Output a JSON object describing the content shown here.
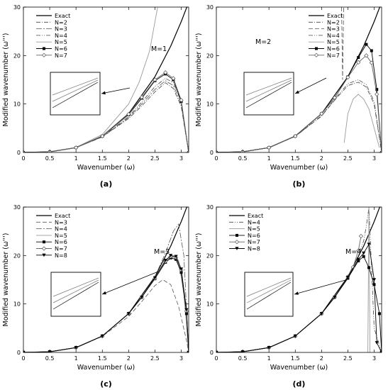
{
  "chart_data": [
    {
      "type": "line",
      "panel_label": "(a)",
      "annotation": "M=1",
      "xlabel": "Wavenumber (ω)",
      "ylabel": "Modified wavenumber (ω''')",
      "xlim": [
        0,
        3.14159
      ],
      "ylim": [
        0,
        30
      ],
      "xticks": [
        0,
        0.5,
        1,
        1.5,
        2,
        2.5,
        3
      ],
      "yticks": [
        0,
        10,
        20,
        30
      ],
      "legend_position": "top-left",
      "series": [
        {
          "name": "Exact",
          "style": "solid-thick",
          "x": [
            0,
            0.5,
            1,
            1.5,
            2,
            2.5,
            2.8,
            3.0,
            3.1416
          ],
          "y": [
            0,
            0.125,
            1,
            3.375,
            8,
            15.625,
            21.95,
            27,
            31.0
          ]
        },
        {
          "name": "N=2",
          "style": "dashdot",
          "x": [
            0,
            0.5,
            1,
            1.5,
            2,
            2.25,
            2.5,
            2.7,
            2.85,
            3.0,
            3.1416
          ],
          "y": [
            0,
            0.12,
            0.99,
            3.2,
            7.0,
            9.6,
            12.5,
            14.4,
            13.2,
            9.5,
            0
          ]
        },
        {
          "name": "N=3",
          "style": "dashdot2",
          "x": [
            0,
            0.5,
            1,
            1.5,
            2,
            2.25,
            2.5,
            2.7,
            2.85,
            3.0,
            3.1416
          ],
          "y": [
            0,
            0.12,
            0.99,
            3.2,
            7.2,
            10.0,
            13.0,
            14.8,
            13.8,
            10.0,
            0
          ]
        },
        {
          "name": "N=4",
          "style": "dashdotdot",
          "x": [
            0,
            0.5,
            1,
            1.5,
            2,
            2.25,
            2.5,
            2.7,
            2.85,
            3.0,
            3.1416
          ],
          "y": [
            0,
            0.12,
            0.99,
            3.25,
            7.4,
            10.4,
            13.6,
            15.3,
            14.4,
            10.5,
            0
          ]
        },
        {
          "name": "N=5",
          "style": "gray",
          "x": [
            0,
            0.5,
            1,
            1.5,
            2,
            2.2,
            2.4,
            2.55
          ],
          "y": [
            0,
            0.13,
            1.05,
            3.7,
            10.0,
            14.5,
            21.0,
            29.9
          ]
        },
        {
          "name": "N=6",
          "style": "filled-square",
          "x": [
            0,
            0.5,
            1,
            1.5,
            2,
            2.25,
            2.5,
            2.7,
            2.85,
            3.0,
            3.1416
          ],
          "y": [
            0,
            0.125,
            1.0,
            3.35,
            7.8,
            11.2,
            14.8,
            16.2,
            15.0,
            10.5,
            0
          ]
        },
        {
          "name": "N=7",
          "style": "open-diamond",
          "x": [
            0,
            0.5,
            1,
            1.5,
            2,
            2.25,
            2.5,
            2.7,
            2.85,
            3.0,
            3.1416
          ],
          "y": [
            0,
            0.125,
            1.0,
            3.37,
            7.9,
            11.4,
            15.0,
            16.5,
            15.3,
            10.8,
            0
          ]
        }
      ]
    },
    {
      "type": "line",
      "panel_label": "(b)",
      "annotation": "M=2",
      "xlabel": "Wavenumber (ω)",
      "ylabel": "Modified wavenumber (ω''')",
      "xlim": [
        0,
        3.14159
      ],
      "ylim": [
        0,
        30
      ],
      "xticks": [
        0,
        0.5,
        1,
        1.5,
        2,
        2.5,
        3
      ],
      "yticks": [
        0,
        10,
        20,
        30
      ],
      "legend_position": "top-right",
      "series": [
        {
          "name": "Exact",
          "style": "solid-thick",
          "x": [
            0,
            0.5,
            1,
            1.5,
            2,
            2.5,
            2.8,
            3.0,
            3.1416
          ],
          "y": [
            0,
            0.125,
            1,
            3.375,
            8,
            15.625,
            21.95,
            27,
            31.0
          ]
        },
        {
          "name": "N=2",
          "style": "dashdot",
          "x": [
            0,
            0.5,
            1,
            1.5,
            2,
            2.25,
            2.5,
            2.7,
            2.85,
            3.0,
            3.1416
          ],
          "y": [
            0,
            0.12,
            0.99,
            3.3,
            7.5,
            10.8,
            13.8,
            14.5,
            13.5,
            10.0,
            0
          ]
        },
        {
          "name": "N=3",
          "style": "dash",
          "x": [
            2.38,
            2.4,
            2.42
          ],
          "y": [
            30,
            15,
            30
          ]
        },
        {
          "name": "N=4",
          "style": "dashdotdot",
          "x": [
            0,
            0.5,
            1,
            1.5,
            2,
            2.25,
            2.5,
            2.7,
            2.85,
            3.0,
            3.1416
          ],
          "y": [
            0,
            0.12,
            0.99,
            3.3,
            7.6,
            11.0,
            14.2,
            15.0,
            14.0,
            10.5,
            0
          ]
        },
        {
          "name": "N=5",
          "style": "gray",
          "x": [
            2.43,
            2.5,
            2.6,
            2.7,
            2.8,
            2.9,
            3.0,
            3.1
          ],
          "y": [
            2,
            8,
            11,
            12,
            11,
            9,
            5,
            1
          ]
        },
        {
          "name": "N=6",
          "style": "filled-square",
          "x": [
            0,
            0.5,
            1,
            1.5,
            2,
            2.25,
            2.5,
            2.7,
            2.85,
            2.95,
            3.05,
            3.1416
          ],
          "y": [
            0,
            0.125,
            1.0,
            3.37,
            8.0,
            11.3,
            15.6,
            19.6,
            22.3,
            21.0,
            13.0,
            0
          ]
        },
        {
          "name": "N=7",
          "style": "open-diamond",
          "x": [
            0,
            0.5,
            1,
            1.5,
            2,
            2.25,
            2.5,
            2.7,
            2.85,
            2.95,
            3.05,
            3.1416
          ],
          "y": [
            0,
            0.125,
            1.0,
            3.37,
            8.0,
            11.3,
            15.5,
            18.6,
            20.0,
            18.5,
            12.0,
            0
          ]
        }
      ]
    },
    {
      "type": "line",
      "panel_label": "(c)",
      "annotation": "M=3",
      "xlabel": "Wavenumber (ω)",
      "ylabel": "Modified wavenumber (ω''')",
      "xlim": [
        0,
        3.14159
      ],
      "ylim": [
        0,
        30
      ],
      "xticks": [
        0,
        0.5,
        1,
        1.5,
        2,
        2.5,
        3
      ],
      "yticks": [
        0,
        10,
        20,
        30
      ],
      "legend_position": "top-left",
      "series": [
        {
          "name": "Exact",
          "style": "solid-thick",
          "x": [
            0,
            0.5,
            1,
            1.5,
            2,
            2.5,
            2.8,
            3.0,
            3.1416
          ],
          "y": [
            0,
            0.125,
            1,
            3.375,
            8,
            15.625,
            21.95,
            27,
            31.0
          ]
        },
        {
          "name": "N=3",
          "style": "dash",
          "x": [
            0,
            0.5,
            1,
            1.5,
            2,
            2.25,
            2.5,
            2.65,
            2.8,
            2.95,
            3.1,
            3.1416
          ],
          "y": [
            0,
            0.12,
            0.99,
            3.3,
            7.4,
            10.5,
            13.8,
            15.0,
            14.0,
            9.5,
            2.5,
            0
          ]
        },
        {
          "name": "N=4",
          "style": "dashdot2",
          "x": [
            0,
            0.5,
            1,
            1.5,
            2,
            2.25,
            2.5,
            2.7,
            2.85,
            2.95,
            3.05,
            3.1416
          ],
          "y": [
            0,
            0.125,
            1.0,
            3.37,
            8.0,
            11.4,
            15.6,
            20.5,
            25.0,
            26.5,
            20.0,
            0
          ]
        },
        {
          "name": "N=5",
          "style": "gray",
          "x": [
            0,
            0.5,
            1,
            1.5,
            2,
            2.25,
            2.5,
            2.7,
            2.85,
            2.95,
            3.05,
            3.1416
          ],
          "y": [
            0,
            0.125,
            1.0,
            3.37,
            8.0,
            11.4,
            15.4,
            18.6,
            19.8,
            19.0,
            12.0,
            0
          ]
        },
        {
          "name": "N=6",
          "style": "filled-square",
          "x": [
            0,
            0.5,
            1,
            1.5,
            2,
            2.25,
            2.5,
            2.7,
            2.8,
            2.9,
            3.0,
            3.1,
            3.1416
          ],
          "y": [
            0,
            0.125,
            1.0,
            3.37,
            8.0,
            11.4,
            15.2,
            18.6,
            19.5,
            19.2,
            16.5,
            8.0,
            0
          ]
        },
        {
          "name": "N=7",
          "style": "open-diamond",
          "x": [
            0,
            0.5,
            1,
            1.5,
            2,
            2.25,
            2.5,
            2.7,
            2.8,
            2.9,
            3.0,
            3.1,
            3.1416
          ],
          "y": [
            0,
            0.125,
            1.0,
            3.37,
            8.0,
            11.4,
            15.3,
            18.8,
            19.8,
            19.6,
            17.0,
            8.5,
            0
          ]
        },
        {
          "name": "N=8",
          "style": "filled-triangle",
          "x": [
            0,
            0.5,
            1,
            1.5,
            2,
            2.25,
            2.5,
            2.7,
            2.8,
            2.9,
            3.0,
            3.1,
            3.1416
          ],
          "y": [
            0,
            0.125,
            1.0,
            3.37,
            8.0,
            11.4,
            15.4,
            19.0,
            20.0,
            19.8,
            17.2,
            8.8,
            0
          ]
        }
      ]
    },
    {
      "type": "line",
      "panel_label": "(d)",
      "annotation": "M=4",
      "xlabel": "Wavenumber (ω)",
      "ylabel": "Modified wavenumber (ω''')",
      "xlim": [
        0,
        3.14159
      ],
      "ylim": [
        0,
        30
      ],
      "xticks": [
        0,
        0.5,
        1,
        1.5,
        2,
        2.5,
        3
      ],
      "yticks": [
        0,
        10,
        20,
        30
      ],
      "legend_position": "top-left",
      "series": [
        {
          "name": "Exact",
          "style": "solid-thick",
          "x": [
            0,
            0.5,
            1,
            1.5,
            2,
            2.5,
            2.8,
            3.0,
            3.1416
          ],
          "y": [
            0,
            0.125,
            1,
            3.375,
            8,
            15.625,
            21.95,
            27,
            31.0
          ]
        },
        {
          "name": "N=4",
          "style": "dashdotdot",
          "x": [
            0,
            0.5,
            1,
            1.5,
            2,
            2.25,
            2.5,
            2.7,
            2.8,
            2.85,
            2.9,
            3.0,
            3.1416
          ],
          "y": [
            0,
            0.125,
            1.0,
            3.37,
            8.0,
            11.4,
            15.6,
            20.0,
            23.0,
            26.0,
            29.9,
            5,
            0
          ]
        },
        {
          "name": "N=5",
          "style": "gray",
          "x": [
            2.88,
            2.9,
            2.92
          ],
          "y": [
            0,
            30,
            0
          ]
        },
        {
          "name": "N=6",
          "style": "filled-square",
          "x": [
            0,
            0.5,
            1,
            1.5,
            2,
            2.25,
            2.5,
            2.7,
            2.8,
            2.9,
            3.0,
            3.1,
            3.1416
          ],
          "y": [
            0,
            0.125,
            1.0,
            3.37,
            8.0,
            11.4,
            15.3,
            18.9,
            19.8,
            17.5,
            14.0,
            8.0,
            0
          ]
        },
        {
          "name": "N=7",
          "style": "open-diamond",
          "x": [
            0,
            0.5,
            1,
            1.5,
            2,
            2.25,
            2.5,
            2.6,
            2.7,
            2.75
          ],
          "y": [
            0,
            0.125,
            1.0,
            3.37,
            8.0,
            11.4,
            15.6,
            17.6,
            21.0,
            24.0
          ]
        },
        {
          "name": "N=8",
          "style": "filled-triangle",
          "x": [
            0,
            0.5,
            1,
            1.5,
            2,
            2.25,
            2.5,
            2.7,
            2.8,
            2.9,
            3.0,
            3.05,
            3.1416
          ],
          "y": [
            0,
            0.125,
            1.0,
            3.37,
            8.0,
            11.4,
            15.5,
            19.2,
            20.5,
            22.3,
            15.0,
            2.0,
            0
          ]
        }
      ]
    }
  ]
}
